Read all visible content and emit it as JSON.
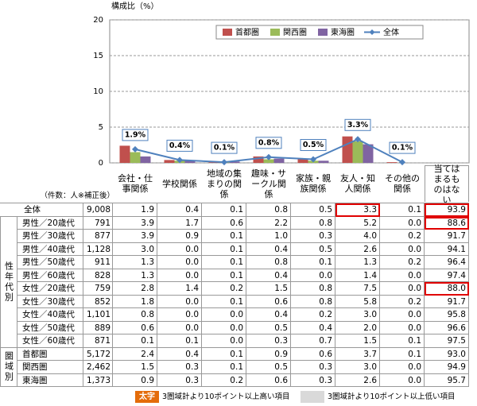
{
  "chart_data": {
    "type": "bar",
    "y_label": "構成比（%）",
    "categories": [
      "会社・仕事関係",
      "学校関係",
      "地域の集まりの関係",
      "趣味・サークル関係",
      "家族・親族関係",
      "友人・知人関係",
      "その他の関係"
    ],
    "ylim": [
      0,
      20
    ],
    "yticks": [
      0,
      5,
      10,
      15,
      20
    ],
    "grid": true,
    "legend_position": "upper right",
    "series": [
      {
        "name": "首都圏",
        "type": "bar",
        "color": "#c0504d",
        "values": [
          2.4,
          0.4,
          0.1,
          0.9,
          0.6,
          3.7,
          0.1
        ]
      },
      {
        "name": "関西圏",
        "type": "bar",
        "color": "#9bbb59",
        "values": [
          1.5,
          0.3,
          0.1,
          0.5,
          0.3,
          3.0,
          0.0
        ]
      },
      {
        "name": "東海圏",
        "type": "bar",
        "color": "#8064a2",
        "values": [
          0.9,
          0.3,
          0.2,
          0.6,
          0.3,
          2.6,
          0.0
        ]
      },
      {
        "name": "全体",
        "type": "line",
        "color": "#4f81bd",
        "values": [
          1.9,
          0.4,
          0.1,
          0.8,
          0.5,
          3.3,
          0.1
        ],
        "value_labels": [
          "1.9%",
          "0.4%",
          "0.1%",
          "0.8%",
          "0.5%",
          "3.3%",
          "0.1%"
        ]
      }
    ]
  },
  "table": {
    "count_header": "（件数：人※補正後）",
    "extra_column": "当てはまるものはない",
    "rows": [
      {
        "label": "全体",
        "count": "9,008",
        "values": [
          "1.9",
          "0.4",
          "0.1",
          "0.8",
          "0.5",
          "3.3",
          "0.1",
          "93.9"
        ]
      }
    ],
    "groups": [
      {
        "label": "性年代別",
        "rows": [
          {
            "label": "男性／20歳代",
            "count": "791",
            "values": [
              "3.9",
              "1.7",
              "0.6",
              "2.2",
              "0.8",
              "5.2",
              "0.0",
              "88.6"
            ]
          },
          {
            "label": "男性／30歳代",
            "count": "877",
            "values": [
              "3.9",
              "0.9",
              "0.1",
              "1.0",
              "0.3",
              "4.0",
              "0.2",
              "91.7"
            ]
          },
          {
            "label": "男性／40歳代",
            "count": "1,128",
            "values": [
              "3.0",
              "0.0",
              "0.1",
              "0.4",
              "0.5",
              "2.6",
              "0.0",
              "94.1"
            ]
          },
          {
            "label": "男性／50歳代",
            "count": "911",
            "values": [
              "1.3",
              "0.0",
              "0.1",
              "0.8",
              "0.1",
              "1.3",
              "0.2",
              "96.4"
            ]
          },
          {
            "label": "男性／60歳代",
            "count": "828",
            "values": [
              "1.3",
              "0.0",
              "0.1",
              "0.4",
              "0.0",
              "1.4",
              "0.0",
              "97.4"
            ]
          },
          {
            "label": "女性／20歳代",
            "count": "759",
            "values": [
              "2.8",
              "1.4",
              "0.2",
              "1.5",
              "0.8",
              "7.5",
              "0.0",
              "88.0"
            ]
          },
          {
            "label": "女性／30歳代",
            "count": "852",
            "values": [
              "1.8",
              "0.0",
              "0.1",
              "0.6",
              "0.8",
              "5.8",
              "0.2",
              "91.7"
            ]
          },
          {
            "label": "女性／40歳代",
            "count": "1,101",
            "values": [
              "0.8",
              "0.0",
              "0.0",
              "0.4",
              "0.2",
              "3.0",
              "0.0",
              "95.8"
            ]
          },
          {
            "label": "女性／50歳代",
            "count": "889",
            "values": [
              "0.6",
              "0.0",
              "0.0",
              "0.5",
              "0.4",
              "2.0",
              "0.0",
              "96.6"
            ]
          },
          {
            "label": "女性／60歳代",
            "count": "871",
            "values": [
              "0.1",
              "0.1",
              "0.0",
              "0.3",
              "0.7",
              "1.5",
              "0.1",
              "97.5"
            ]
          }
        ]
      },
      {
        "label": "圏域別",
        "rows": [
          {
            "label": "首都圏",
            "count": "5,172",
            "values": [
              "2.4",
              "0.4",
              "0.1",
              "0.9",
              "0.6",
              "3.7",
              "0.1",
              "93.0"
            ]
          },
          {
            "label": "関西圏",
            "count": "2,462",
            "values": [
              "1.5",
              "0.3",
              "0.1",
              "0.5",
              "0.3",
              "3.0",
              "0.0",
              "94.9"
            ]
          },
          {
            "label": "東海圏",
            "count": "1,373",
            "values": [
              "0.9",
              "0.3",
              "0.2",
              "0.6",
              "0.3",
              "2.6",
              "0.0",
              "95.7"
            ]
          }
        ]
      }
    ]
  },
  "notes": [
    {
      "sample": "太字",
      "text": "3圏域計より10ポイント以上高い項目"
    },
    {
      "text": "3圏域計より10ポイント以上低い項目"
    }
  ]
}
